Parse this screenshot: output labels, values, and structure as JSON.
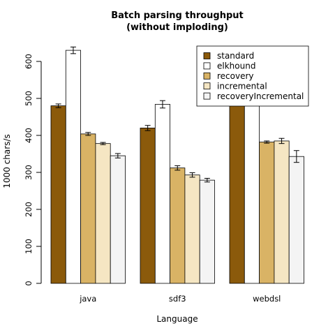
{
  "chart_data": {
    "type": "bar",
    "title_lines": [
      "Batch parsing throughput",
      "(without imploding)"
    ],
    "xlabel": "Language",
    "ylabel": "1000 chars/s",
    "categories": [
      "java",
      "sdf3",
      "webdsl"
    ],
    "ylim": [
      0,
      650
    ],
    "yticks": [
      0,
      100,
      200,
      300,
      400,
      500,
      600
    ],
    "legend_position": "top-right",
    "error_bars": true,
    "series": [
      {
        "name": "standard",
        "color": "#8B5A0B",
        "values": [
          480,
          420,
          490
        ],
        "errors": [
          5,
          7,
          7
        ]
      },
      {
        "name": "elkhound",
        "color": "#FFFFFF",
        "values": [
          630,
          484,
          620
        ],
        "errors": [
          9,
          10,
          12
        ]
      },
      {
        "name": "recovery",
        "color": "#D9B365",
        "values": [
          404,
          312,
          382
        ],
        "errors": [
          4,
          6,
          3
        ]
      },
      {
        "name": "incremental",
        "color": "#F5E6C3",
        "values": [
          378,
          293,
          385
        ],
        "errors": [
          3,
          6,
          7
        ]
      },
      {
        "name": "recoveryIncremental",
        "color": "#F4F4F4",
        "values": [
          345,
          279,
          343
        ],
        "errors": [
          6,
          5,
          16
        ]
      }
    ]
  }
}
